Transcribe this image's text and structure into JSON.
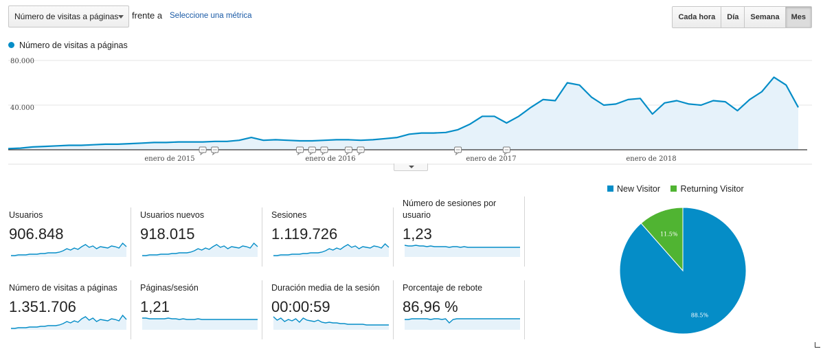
{
  "toolbar": {
    "metric_select": "Número de visitas a páginas",
    "vs_label": "frente a",
    "pick_metric": "Seleccione una métrica",
    "granularity": [
      "Cada hora",
      "Día",
      "Semana",
      "Mes"
    ],
    "active_granularity": "Mes"
  },
  "colors": {
    "primary": "#058dc7",
    "fill": "#e6f2fa",
    "secondary": "#50b432",
    "grid": "#e6e6e6"
  },
  "icons": {
    "annotation": "speech-bubble-icon",
    "collapse": "chevron-down-icon"
  },
  "chart_data": {
    "type": "area",
    "legend": "Número de visitas a páginas",
    "y_ticks": [
      "80.000",
      "40.000"
    ],
    "ylim": [
      0,
      80000
    ],
    "x_labels": [
      "enero de 2015",
      "enero de 2016",
      "enero de 2017",
      "enero de 2018"
    ],
    "x_label_month_index": [
      12,
      24,
      36,
      48
    ],
    "values": [
      1000,
      1500,
      2500,
      3000,
      3500,
      4000,
      4000,
      4500,
      5000,
      5000,
      5500,
      6000,
      6500,
      6500,
      7000,
      7000,
      7000,
      7500,
      7500,
      8500,
      11000,
      8500,
      9000,
      8500,
      8000,
      8000,
      8500,
      9000,
      9000,
      8500,
      9000,
      10000,
      11000,
      14000,
      15000,
      15000,
      15500,
      18000,
      23000,
      30000,
      30000,
      24000,
      30000,
      38000,
      45000,
      44000,
      60000,
      58000,
      47000,
      40000,
      41000,
      45000,
      46000,
      32000,
      42000,
      44000,
      41000,
      40000,
      44000,
      43000,
      35000,
      45000,
      52000,
      65000,
      58000,
      38000
    ],
    "annotation_month_index": [
      16,
      17,
      24,
      25,
      26,
      28,
      29,
      37,
      41
    ]
  },
  "metrics": [
    {
      "label": "Usuarios",
      "value": "906.848",
      "spark": [
        2,
        2,
        3,
        3,
        3,
        4,
        4,
        4,
        5,
        5,
        6,
        6,
        6,
        7,
        9,
        12,
        10,
        13,
        11,
        15,
        18,
        14,
        16,
        12,
        15,
        14,
        13,
        16,
        15,
        13,
        20,
        15
      ]
    },
    {
      "label": "Usuarios nuevos",
      "value": "918.015",
      "spark": [
        2,
        2,
        3,
        3,
        3,
        4,
        4,
        4,
        5,
        5,
        6,
        6,
        6,
        7,
        9,
        12,
        10,
        13,
        11,
        15,
        18,
        14,
        16,
        12,
        15,
        14,
        13,
        16,
        15,
        13,
        20,
        15
      ]
    },
    {
      "label": "Sesiones",
      "value": "1.119.726",
      "spark": [
        2,
        2,
        3,
        3,
        3,
        4,
        4,
        4,
        5,
        5,
        6,
        6,
        6,
        7,
        9,
        12,
        10,
        13,
        11,
        15,
        18,
        14,
        16,
        12,
        15,
        14,
        13,
        16,
        15,
        13,
        19,
        14
      ]
    },
    {
      "label": "Número de sesiones por usuario",
      "value": "1,23",
      "spark": [
        17,
        16,
        16,
        17,
        16,
        16,
        15,
        16,
        15,
        15,
        15,
        15,
        14,
        15,
        15,
        14,
        15,
        14,
        14,
        14,
        14,
        14,
        14,
        14,
        14,
        14,
        14,
        14,
        14,
        14,
        14,
        14
      ]
    },
    {
      "label": "Número de visitas a páginas",
      "value": "1.351.706",
      "spark": [
        2,
        2,
        3,
        3,
        3,
        4,
        4,
        4,
        5,
        5,
        6,
        6,
        6,
        7,
        9,
        12,
        10,
        13,
        11,
        16,
        19,
        14,
        17,
        12,
        15,
        14,
        13,
        16,
        15,
        13,
        21,
        15
      ]
    },
    {
      "label": "Páginas/sesión",
      "value": "1,21",
      "spark": [
        17,
        17,
        16,
        16,
        16,
        16,
        16,
        17,
        16,
        16,
        15,
        16,
        15,
        15,
        15,
        16,
        15,
        15,
        15,
        15,
        15,
        15,
        15,
        15,
        15,
        15,
        15,
        15,
        15,
        15,
        15,
        15
      ]
    },
    {
      "label": "Duración media de la sesión",
      "value": "00:00:59",
      "spark": [
        19,
        14,
        17,
        12,
        15,
        13,
        16,
        11,
        17,
        14,
        13,
        12,
        14,
        11,
        10,
        11,
        10,
        10,
        9,
        9,
        8,
        8,
        8,
        8,
        8,
        7,
        7,
        7,
        7,
        7,
        7,
        7
      ]
    },
    {
      "label": "Porcentaje de rebote",
      "value": "86,96 %",
      "spark": [
        15,
        15,
        16,
        16,
        16,
        16,
        16,
        15,
        16,
        16,
        15,
        16,
        10,
        15,
        16,
        16,
        16,
        16,
        16,
        16,
        16,
        16,
        16,
        16,
        16,
        16,
        16,
        16,
        16,
        16,
        16,
        16
      ]
    }
  ],
  "pie": {
    "legend": [
      {
        "label": "New Visitor",
        "color": "#058dc7"
      },
      {
        "label": "Returning Visitor",
        "color": "#50b432"
      }
    ],
    "slices": [
      {
        "label": "New Visitor",
        "value": 88.5,
        "text": "88.5%"
      },
      {
        "label": "Returning Visitor",
        "value": 11.5,
        "text": "11.5%"
      }
    ]
  }
}
